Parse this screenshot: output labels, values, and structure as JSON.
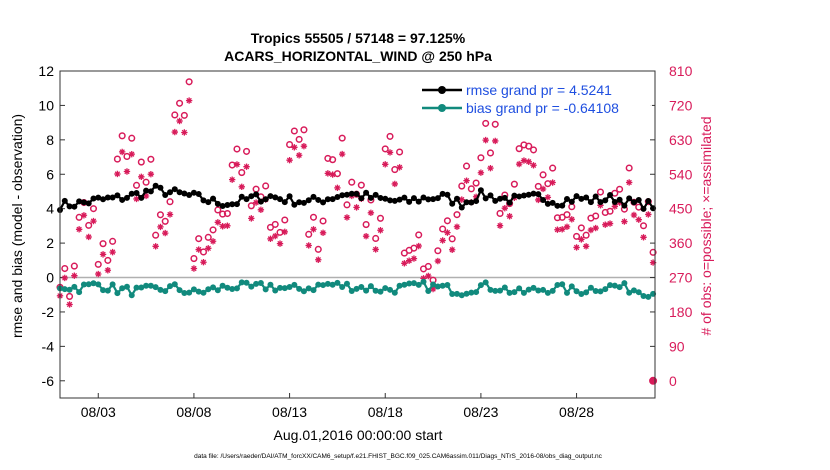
{
  "chart_data": {
    "type": "line",
    "title": "Tropics 55505 / 57148 = 97.125%",
    "subtitle": "ACARS_HORIZONTAL_WIND @ 250 hPa",
    "ylabel": "rmse and bias (model - observation)",
    "y2label": "# of obs: o=possible; ×=assimilated",
    "xlabel": "Aug.01,2016 00:00:00 start",
    "footer": "data file: /Users/raeder/DAI/ATM_forcXX/CAM6_setup/f.e21.FHIST_BGC.f09_025.CAM6assim.011/Diags_NTrS_2016-08/obs_diag_output.nc",
    "ylim": [
      -7,
      12
    ],
    "y2lim": [
      -45,
      810
    ],
    "xlim": [
      1,
      32.1
    ],
    "yticks": [
      "12",
      "10",
      "8",
      "6",
      "4",
      "2",
      "0",
      "-2",
      "-4",
      "-6"
    ],
    "yticks_values": [
      12,
      10,
      8,
      6,
      4,
      2,
      0,
      -2,
      -4,
      -6
    ],
    "y2ticks": [
      "810",
      "720",
      "630",
      "540",
      "450",
      "360",
      "270",
      "180",
      "90",
      "0"
    ],
    "y2ticks_values": [
      810,
      720,
      630,
      540,
      450,
      360,
      270,
      180,
      90,
      0
    ],
    "xticks": [
      "08/03",
      "08/08",
      "08/13",
      "08/18",
      "08/23",
      "08/28"
    ],
    "xticks_values": [
      3,
      8,
      13,
      18,
      23,
      28
    ],
    "legend": [
      {
        "label": "rmse grand pr = 4.5241",
        "color": "#000000"
      },
      {
        "label": "bias grand pr = -0.64108",
        "color": "#118a7d"
      }
    ],
    "legend_text_color": "#1f4fe0",
    "colors": {
      "rmse": "#000000",
      "bias": "#118a7d",
      "obs": "#d81b5a",
      "zero": "#b0b0b0"
    },
    "rmse_base": [
      4.2,
      4.3,
      4.5,
      4.6,
      4.8,
      5.1,
      4.9,
      4.7,
      4.4,
      4.3,
      4.6,
      4.7,
      4.5,
      4.4,
      4.6,
      4.9,
      4.7,
      4.5,
      4.4,
      4.6,
      4.7,
      4.3,
      4.8,
      4.6,
      4.5,
      4.7,
      4.4,
      4.6,
      4.5,
      4.6,
      4.3,
      4.2
    ],
    "bias_base": [
      -0.5,
      -0.6,
      -0.4,
      -0.7,
      -0.8,
      -0.7,
      -0.6,
      -0.9,
      -0.7,
      -0.5,
      -0.6,
      -0.5,
      -0.7,
      -0.6,
      -0.4,
      -0.5,
      -0.6,
      -0.7,
      -0.6,
      -0.5,
      -0.6,
      -0.8,
      -0.5,
      -0.6,
      -0.9,
      -0.7,
      -0.6,
      -0.8,
      -0.6,
      -0.5,
      -0.7,
      -0.9
    ],
    "obs_possible": [
      250,
      420,
      340,
      600,
      520,
      410,
      730,
      330,
      440,
      560,
      480,
      400,
      650,
      380,
      580,
      520,
      420,
      600,
      350,
      300,
      390,
      520,
      640,
      480,
      610,
      520,
      430,
      380,
      440,
      500,
      460,
      330
    ],
    "obs_assimilated_ratio": 0.95,
    "final_point": {
      "x": 32.0,
      "y2": 0
    }
  }
}
